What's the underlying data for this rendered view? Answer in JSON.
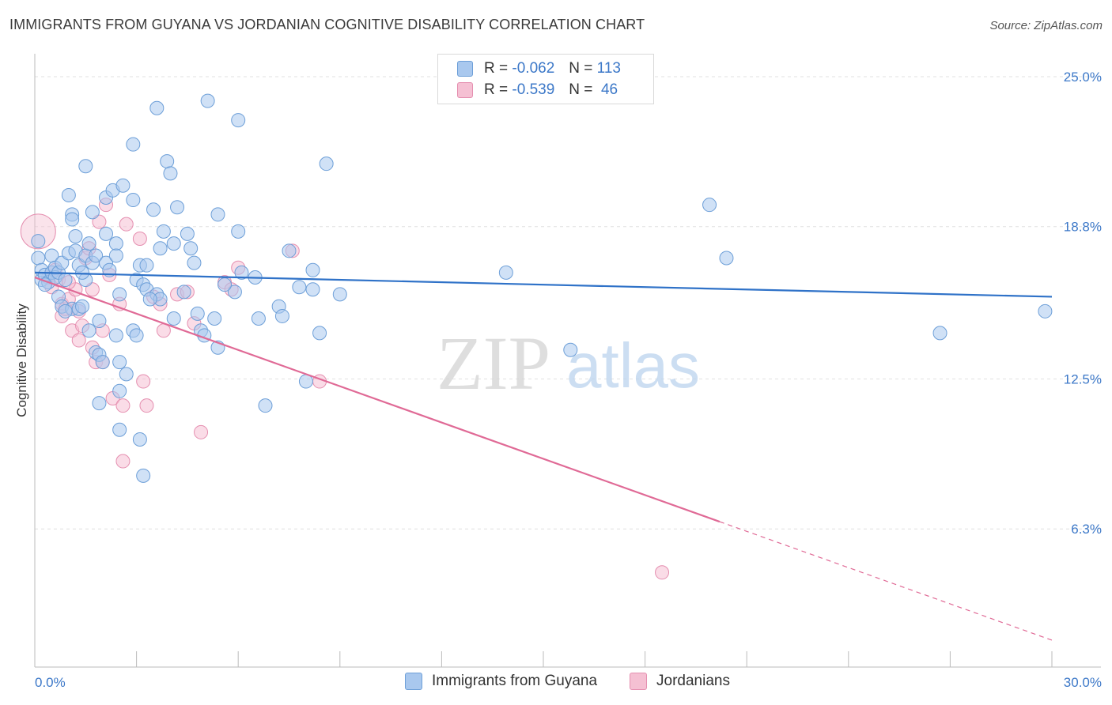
{
  "header": {
    "title": "IMMIGRANTS FROM GUYANA VS JORDANIAN COGNITIVE DISABILITY CORRELATION CHART",
    "source": "Source: ZipAtlas.com"
  },
  "watermark": {
    "zip": "ZIP",
    "atlas": "atlas"
  },
  "stats": [
    {
      "r_label": "R =",
      "r_value": "-0.062",
      "n_label": "N =",
      "n_value": "113"
    },
    {
      "r_label": "R =",
      "r_value": "-0.539",
      "n_label": "N =",
      "n_value": "46"
    }
  ],
  "colors": {
    "blue_fill": "#a9c8ee",
    "blue_stroke": "#6d9fd8",
    "blue_line": "#2f72c8",
    "pink_fill": "#f5c0d3",
    "pink_stroke": "#e58fb0",
    "pink_line": "#e06a96",
    "tick_text": "#3c78c8",
    "grid": "#e0e0e0"
  },
  "chart_data": {
    "type": "scatter",
    "xlabel": "",
    "ylabel": "Cognitive Disability",
    "xlim": [
      0,
      30
    ],
    "ylim": [
      0,
      26
    ],
    "x_tick_labels": [
      "0.0%",
      "30.0%"
    ],
    "y_ticks": [
      6.3,
      12.5,
      18.8,
      25.0
    ],
    "y_tick_labels": [
      "6.3%",
      "12.5%",
      "18.8%",
      "25.0%"
    ],
    "grid": true,
    "legend_position": "bottom",
    "series": [
      {
        "name": "Immigrants from Guyana",
        "trend": {
          "x": [
            0,
            30
          ],
          "y": [
            16.9,
            15.9
          ]
        },
        "points": [
          [
            0.1,
            17.5
          ],
          [
            0.1,
            18.2
          ],
          [
            0.2,
            16.6
          ],
          [
            0.2,
            17.0
          ],
          [
            0.3,
            16.8
          ],
          [
            0.4,
            16.5
          ],
          [
            0.5,
            17.6
          ],
          [
            0.5,
            16.9
          ],
          [
            0.6,
            17.1
          ],
          [
            0.6,
            16.7
          ],
          [
            0.7,
            16.9
          ],
          [
            0.7,
            15.9
          ],
          [
            0.8,
            15.5
          ],
          [
            0.8,
            17.3
          ],
          [
            0.9,
            16.6
          ],
          [
            1.0,
            20.1
          ],
          [
            1.0,
            17.7
          ],
          [
            1.1,
            19.3
          ],
          [
            1.1,
            19.1
          ],
          [
            1.1,
            15.4
          ],
          [
            1.2,
            18.4
          ],
          [
            1.2,
            17.8
          ],
          [
            1.3,
            17.2
          ],
          [
            1.3,
            15.4
          ],
          [
            1.4,
            15.5
          ],
          [
            1.5,
            21.3
          ],
          [
            1.5,
            17.6
          ],
          [
            1.5,
            16.6
          ],
          [
            1.6,
            14.5
          ],
          [
            1.6,
            18.1
          ],
          [
            1.7,
            19.4
          ],
          [
            1.7,
            17.3
          ],
          [
            1.8,
            17.6
          ],
          [
            1.8,
            13.6
          ],
          [
            1.9,
            14.9
          ],
          [
            1.9,
            11.5
          ],
          [
            1.9,
            13.5
          ],
          [
            2.0,
            13.2
          ],
          [
            2.1,
            17.3
          ],
          [
            2.1,
            20.0
          ],
          [
            2.1,
            18.5
          ],
          [
            2.3,
            20.3
          ],
          [
            2.4,
            14.3
          ],
          [
            2.4,
            18.1
          ],
          [
            2.4,
            17.6
          ],
          [
            2.5,
            16.0
          ],
          [
            2.5,
            13.2
          ],
          [
            2.5,
            12.0
          ],
          [
            2.5,
            10.4
          ],
          [
            2.6,
            20.5
          ],
          [
            2.7,
            12.7
          ],
          [
            2.9,
            22.2
          ],
          [
            2.9,
            19.9
          ],
          [
            2.9,
            14.5
          ],
          [
            3.0,
            14.3
          ],
          [
            3.0,
            16.6
          ],
          [
            3.1,
            10.0
          ],
          [
            3.1,
            17.2
          ],
          [
            3.2,
            8.5
          ],
          [
            3.2,
            16.4
          ],
          [
            3.3,
            17.2
          ],
          [
            3.3,
            16.2
          ],
          [
            3.5,
            19.5
          ],
          [
            3.6,
            23.7
          ],
          [
            3.6,
            16.0
          ],
          [
            3.7,
            15.8
          ],
          [
            3.7,
            17.9
          ],
          [
            3.8,
            18.6
          ],
          [
            3.9,
            21.5
          ],
          [
            4.0,
            21.0
          ],
          [
            4.1,
            15.0
          ],
          [
            4.1,
            18.1
          ],
          [
            4.2,
            19.6
          ],
          [
            4.4,
            16.1
          ],
          [
            4.5,
            18.5
          ],
          [
            4.6,
            17.9
          ],
          [
            4.7,
            17.3
          ],
          [
            4.9,
            14.5
          ],
          [
            5.0,
            14.3
          ],
          [
            5.1,
            24.0
          ],
          [
            5.3,
            15.0
          ],
          [
            5.4,
            13.8
          ],
          [
            5.4,
            19.3
          ],
          [
            5.9,
            16.1
          ],
          [
            6.0,
            23.2
          ],
          [
            6.0,
            18.6
          ],
          [
            6.1,
            16.9
          ],
          [
            6.5,
            16.7
          ],
          [
            6.6,
            15.0
          ],
          [
            6.8,
            11.4
          ],
          [
            7.2,
            15.5
          ],
          [
            7.3,
            15.1
          ],
          [
            7.8,
            16.3
          ],
          [
            8.0,
            12.4
          ],
          [
            8.2,
            17.0
          ],
          [
            8.2,
            16.2
          ],
          [
            8.4,
            14.4
          ],
          [
            8.6,
            21.4
          ],
          [
            13.9,
            16.9
          ],
          [
            15.8,
            13.7
          ],
          [
            19.9,
            19.7
          ],
          [
            20.4,
            17.5
          ],
          [
            26.7,
            14.4
          ],
          [
            29.8,
            15.3
          ],
          [
            0.3,
            16.4
          ],
          [
            0.9,
            15.3
          ],
          [
            1.4,
            16.9
          ],
          [
            2.2,
            17.0
          ],
          [
            3.4,
            15.8
          ],
          [
            4.8,
            15.2
          ],
          [
            5.6,
            16.4
          ],
          [
            7.5,
            17.8
          ],
          [
            9.0,
            16.0
          ]
        ]
      },
      {
        "name": "Jordanians",
        "trend": {
          "x": [
            0,
            30
          ],
          "y": [
            16.7,
            1.7
          ],
          "solid_until": 20.2
        },
        "points": [
          [
            0.1,
            18.6
          ],
          [
            0.4,
            16.7
          ],
          [
            0.5,
            16.3
          ],
          [
            0.6,
            17.0
          ],
          [
            0.7,
            16.6
          ],
          [
            0.8,
            15.6
          ],
          [
            0.8,
            15.1
          ],
          [
            0.9,
            15.4
          ],
          [
            1.0,
            15.8
          ],
          [
            1.1,
            14.5
          ],
          [
            1.2,
            16.2
          ],
          [
            1.3,
            14.1
          ],
          [
            1.3,
            15.3
          ],
          [
            1.4,
            14.7
          ],
          [
            1.5,
            17.5
          ],
          [
            1.6,
            17.9
          ],
          [
            1.7,
            13.8
          ],
          [
            1.7,
            16.2
          ],
          [
            1.8,
            13.2
          ],
          [
            1.9,
            19.0
          ],
          [
            2.0,
            13.2
          ],
          [
            2.0,
            14.5
          ],
          [
            2.1,
            19.7
          ],
          [
            2.2,
            16.8
          ],
          [
            2.3,
            11.7
          ],
          [
            2.5,
            15.6
          ],
          [
            2.6,
            9.1
          ],
          [
            2.6,
            11.4
          ],
          [
            2.7,
            18.9
          ],
          [
            3.1,
            18.3
          ],
          [
            3.2,
            12.4
          ],
          [
            3.3,
            11.4
          ],
          [
            3.5,
            15.9
          ],
          [
            3.7,
            15.6
          ],
          [
            3.8,
            14.5
          ],
          [
            4.2,
            16.0
          ],
          [
            4.5,
            16.1
          ],
          [
            4.7,
            14.8
          ],
          [
            4.9,
            10.3
          ],
          [
            5.6,
            16.5
          ],
          [
            5.8,
            16.2
          ],
          [
            6.0,
            17.1
          ],
          [
            7.6,
            17.8
          ],
          [
            8.4,
            12.4
          ],
          [
            18.5,
            4.5
          ],
          [
            1.0,
            16.5
          ]
        ]
      }
    ]
  },
  "bottom_legend": [
    "Immigrants from Guyana",
    "Jordanians"
  ]
}
